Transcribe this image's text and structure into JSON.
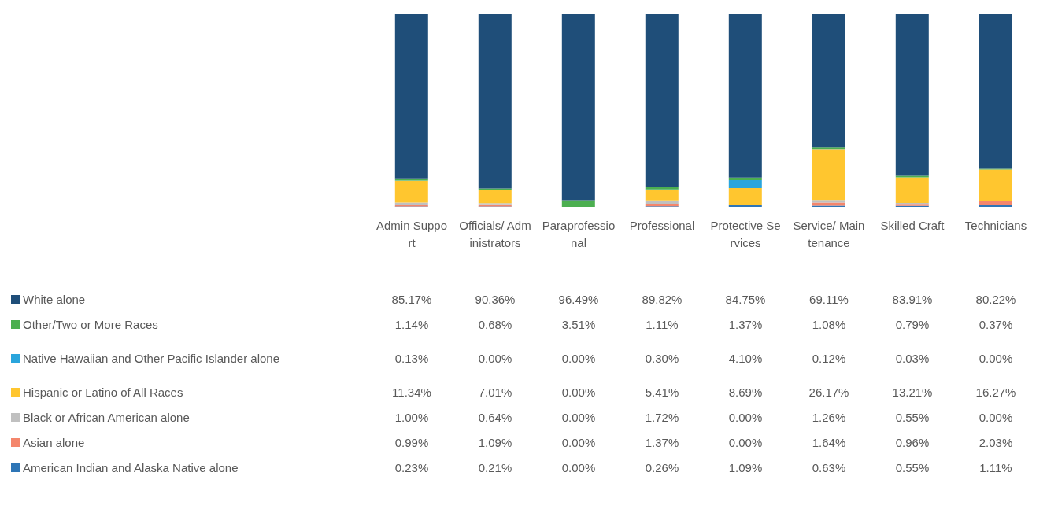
{
  "chart_data": {
    "type": "bar",
    "stacked": true,
    "legend": "bottom",
    "categories": [
      "Admin Support",
      "Officials/ Administrators",
      "Paraprofessional",
      "Professional",
      "Protective Services",
      "Service/ Maintenance",
      "Skilled Craft",
      "Technicians"
    ],
    "series": [
      {
        "name": "American Indian and Alaska Native alone",
        "color": "#2e75b6",
        "values": [
          0.23,
          0.21,
          0.0,
          0.26,
          1.09,
          0.63,
          0.55,
          1.11
        ],
        "value_labels": [
          "0.23%",
          "0.21%",
          "0.00%",
          "0.26%",
          "1.09%",
          "0.63%",
          "0.55%",
          "1.11%"
        ]
      },
      {
        "name": "Asian alone",
        "color": "#f4866c",
        "values": [
          0.99,
          1.09,
          0.0,
          1.37,
          0.0,
          1.64,
          0.96,
          2.03
        ],
        "value_labels": [
          "0.99%",
          "1.09%",
          "0.00%",
          "1.37%",
          "0.00%",
          "1.64%",
          "0.96%",
          "2.03%"
        ]
      },
      {
        "name": "Black or African American alone",
        "color": "#c0c0c0",
        "values": [
          1.0,
          0.64,
          0.0,
          1.72,
          0.0,
          1.26,
          0.55,
          0.0
        ],
        "value_labels": [
          "1.00%",
          "0.64%",
          "0.00%",
          "1.72%",
          "0.00%",
          "1.26%",
          "0.55%",
          "0.00%"
        ]
      },
      {
        "name": "Hispanic or Latino of All Races",
        "color": "#ffc62f",
        "values": [
          11.34,
          7.01,
          0.0,
          5.41,
          8.69,
          26.17,
          13.21,
          16.27
        ],
        "value_labels": [
          "11.34%",
          "7.01%",
          "0.00%",
          "5.41%",
          "8.69%",
          "26.17%",
          "13.21%",
          "16.27%"
        ]
      },
      {
        "name": "Native Hawaiian and Other Pacific Islander alone",
        "color": "#2aa5dc",
        "values": [
          0.13,
          0.0,
          0.0,
          0.3,
          4.1,
          0.12,
          0.03,
          0.0
        ],
        "value_labels": [
          "0.13%",
          "0.00%",
          "0.00%",
          "0.30%",
          "4.10%",
          "0.12%",
          "0.03%",
          "0.00%"
        ]
      },
      {
        "name": "Other/Two or More Races",
        "color": "#4caf50",
        "values": [
          1.14,
          0.68,
          3.51,
          1.11,
          1.37,
          1.08,
          0.79,
          0.37
        ],
        "value_labels": [
          "1.14%",
          "0.68%",
          "3.51%",
          "1.11%",
          "1.37%",
          "1.08%",
          "0.79%",
          "0.37%"
        ]
      },
      {
        "name": "White alone",
        "color": "#1f4e79",
        "values": [
          85.17,
          90.36,
          96.49,
          89.82,
          84.75,
          69.11,
          83.91,
          80.22
        ],
        "value_labels": [
          "85.17%",
          "90.36%",
          "96.49%",
          "89.82%",
          "84.75%",
          "69.11%",
          "83.91%",
          "80.22%"
        ]
      }
    ]
  }
}
